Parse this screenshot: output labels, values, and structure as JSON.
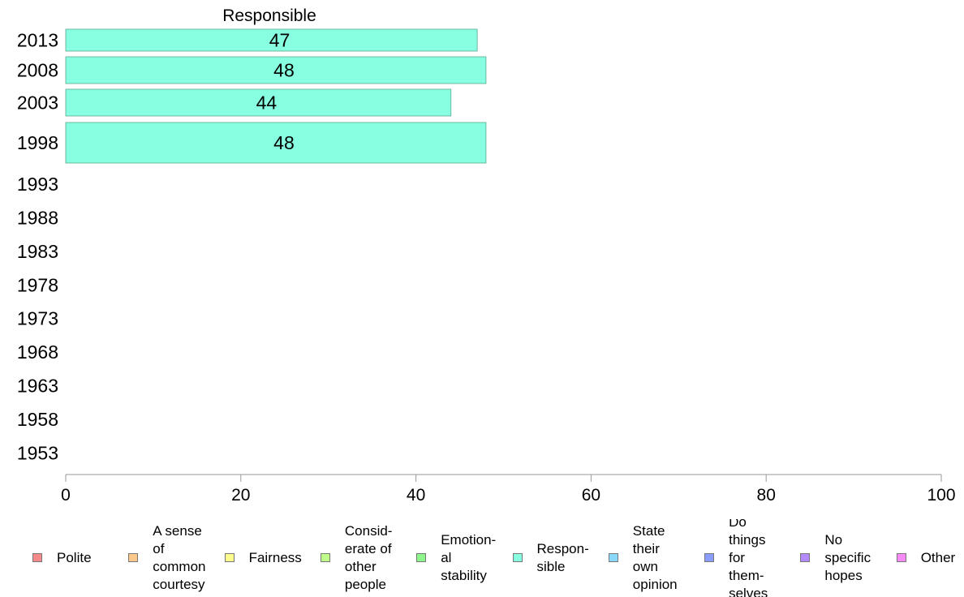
{
  "chart_data": {
    "type": "bar",
    "orientation": "horizontal",
    "title": "Responsible",
    "categories": [
      "2013",
      "2008",
      "2003",
      "1998",
      "1993",
      "1988",
      "1983",
      "1978",
      "1973",
      "1968",
      "1963",
      "1958",
      "1953"
    ],
    "series": [
      {
        "name": "Responsible",
        "color": "#88ffe0",
        "values": [
          47,
          48,
          44,
          48,
          null,
          null,
          null,
          null,
          null,
          null,
          null,
          null,
          null
        ],
        "labels": [
          "47",
          "48",
          "44",
          "48",
          "",
          "",
          "",
          "",
          "",
          "",
          "",
          "",
          ""
        ]
      }
    ],
    "xlim": [
      0,
      100
    ],
    "xticks": [
      "0",
      "20",
      "40",
      "60",
      "80",
      "100"
    ],
    "grid": false,
    "legend_position": "bottom",
    "legend": [
      {
        "label": "Polite",
        "color": "#f48a8a"
      },
      {
        "label": "A sense\nof\ncommon\ncourtesy",
        "color": "#fcc78b"
      },
      {
        "label": "Fairness",
        "color": "#fcfc8c"
      },
      {
        "label": "Consid-\nerate of\nother\npeople",
        "color": "#c0fc8a"
      },
      {
        "label": "Emotion-\nal\nstability",
        "color": "#8df58c"
      },
      {
        "label": "Respon-\nsible",
        "color": "#88ffe0"
      },
      {
        "label": "State\ntheir\nown\nopinion",
        "color": "#8ad8fc"
      },
      {
        "label": "Do\nthings\nfor\nthem-\nselves",
        "color": "#8a9cfc"
      },
      {
        "label": "No\nspecific\nhopes",
        "color": "#b38afc"
      },
      {
        "label": "Other",
        "color": "#f88af6"
      }
    ]
  }
}
